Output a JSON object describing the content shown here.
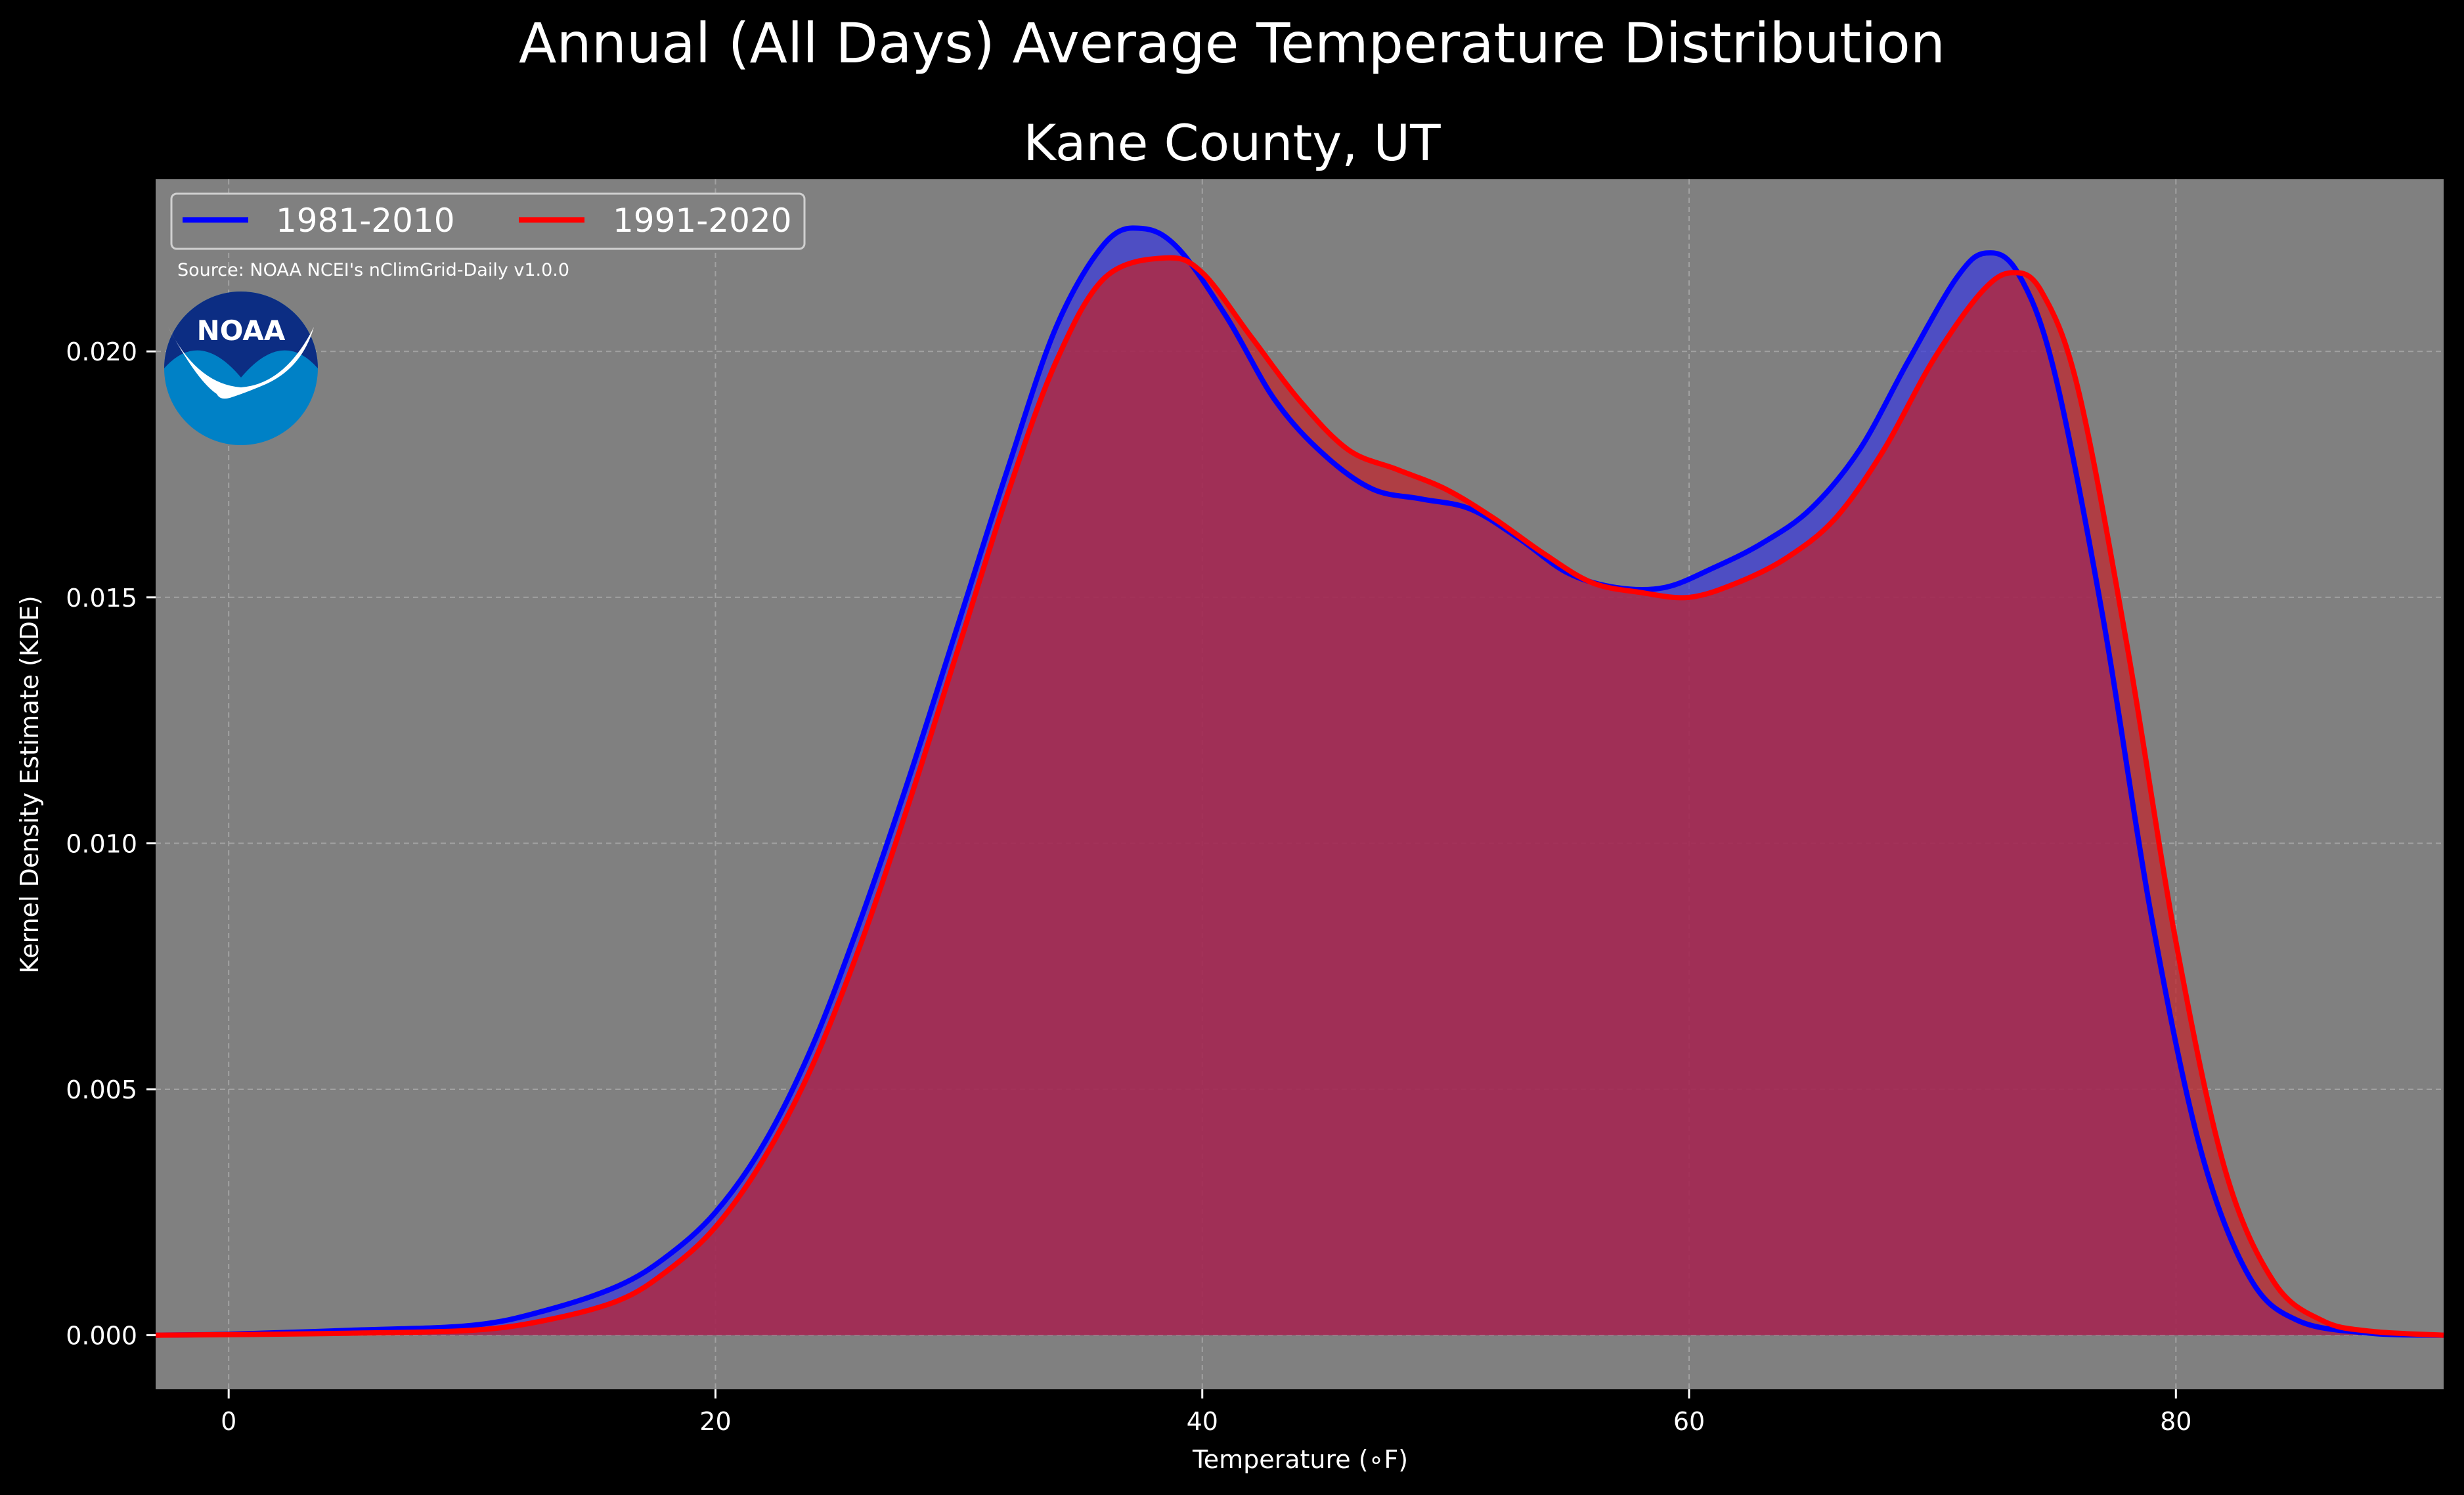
{
  "chart_data": {
    "type": "area",
    "title": "Annual (All Days) Average Temperature Distribution",
    "subtitle": "Kane County, UT",
    "xlabel": "Temperature (∘F)",
    "ylabel": "Kernel Density Estimate (KDE)",
    "xlim": [
      -3,
      91
    ],
    "ylim": [
      -0.0011,
      0.0235
    ],
    "x_ticks": [
      0,
      20,
      40,
      60,
      80
    ],
    "x_tick_labels": [
      "0",
      "20",
      "40",
      "60",
      "80"
    ],
    "y_ticks": [
      0.0,
      0.005,
      0.01,
      0.015,
      0.02
    ],
    "y_tick_labels": [
      "0.000",
      "0.005",
      "0.010",
      "0.015",
      "0.020"
    ],
    "grid": true,
    "legend_placement": "top-left",
    "annotation": "Source: NOAA NCEI's nClimGrid-Daily v1.0.0",
    "logo_text": "NOAA",
    "series": [
      {
        "name": "1981-2010",
        "color": "#0000ff",
        "fill_color": "#3a3adc",
        "x": [
          -3,
          0,
          5,
          10,
          13,
          16,
          18,
          20,
          22,
          24,
          26,
          28,
          30,
          32,
          34,
          36,
          37.5,
          39,
          41,
          43,
          45,
          47,
          49,
          51,
          53,
          55,
          57,
          59,
          61,
          63,
          65,
          67,
          69,
          71,
          72.2,
          73.5,
          75,
          77,
          79,
          81,
          83,
          85,
          88,
          91
        ],
        "y": [
          0.0,
          2e-05,
          0.0001,
          0.0002,
          0.0005,
          0.001,
          0.0016,
          0.0025,
          0.0039,
          0.0059,
          0.0085,
          0.0114,
          0.0145,
          0.0176,
          0.0205,
          0.0222,
          0.0225,
          0.0221,
          0.0207,
          0.019,
          0.0179,
          0.0172,
          0.017,
          0.0168,
          0.0162,
          0.0155,
          0.0152,
          0.0152,
          0.0156,
          0.0161,
          0.0168,
          0.018,
          0.0198,
          0.0215,
          0.022,
          0.0216,
          0.0196,
          0.0146,
          0.0085,
          0.0038,
          0.0012,
          0.0003,
          4e-05,
          0.0
        ]
      },
      {
        "name": "1991-2020",
        "color": "#ff0000",
        "fill_color": "#c0242c",
        "x": [
          -3,
          0,
          5,
          10,
          13,
          16,
          18,
          20,
          22,
          24,
          26,
          28,
          30,
          32,
          34,
          36,
          38.5,
          40,
          42,
          44,
          46,
          48,
          50,
          52,
          54,
          56,
          58,
          60,
          62,
          64,
          66,
          68,
          70,
          72,
          73.3,
          74.5,
          76,
          78,
          80,
          82,
          84,
          86,
          88,
          91
        ],
        "y": [
          0.0,
          1e-05,
          4e-05,
          0.0001,
          0.0003,
          0.0007,
          0.0013,
          0.0022,
          0.0036,
          0.0055,
          0.008,
          0.0109,
          0.014,
          0.0171,
          0.0198,
          0.0215,
          0.0219,
          0.0216,
          0.0203,
          0.019,
          0.018,
          0.0176,
          0.0172,
          0.0166,
          0.0159,
          0.0153,
          0.0151,
          0.015,
          0.0153,
          0.0158,
          0.0166,
          0.018,
          0.0198,
          0.0212,
          0.0216,
          0.0212,
          0.0192,
          0.014,
          0.008,
          0.0034,
          0.0011,
          0.0003,
          8e-05,
          0.0
        ]
      }
    ]
  }
}
